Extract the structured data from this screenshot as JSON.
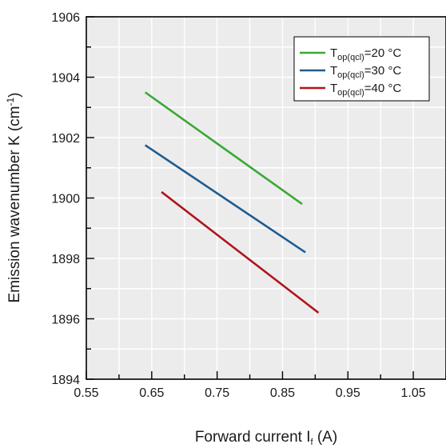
{
  "chart_data": {
    "type": "line",
    "xlabel": {
      "main": "Forward current I",
      "sub": "f",
      "unit": " (A)"
    },
    "ylabel": {
      "main": "Emission wavenumber K (cm",
      "sup": "-1",
      "end": ")"
    },
    "xlim": [
      0.55,
      1.1
    ],
    "ylim": [
      1894,
      1906
    ],
    "x_ticks": [
      "0.55",
      "0.65",
      "0.75",
      "0.85",
      "0.95",
      "1.05"
    ],
    "x_tick_values": [
      0.55,
      0.65,
      0.75,
      0.85,
      0.95,
      1.05
    ],
    "y_ticks": [
      "1894",
      "1896",
      "1898",
      "1900",
      "1902",
      "1904",
      "1906"
    ],
    "y_tick_values": [
      1894,
      1896,
      1898,
      1900,
      1902,
      1904,
      1906
    ],
    "grid": true,
    "legend_position": "top-right",
    "series": [
      {
        "name": {
          "pre": "T",
          "sub": "op(qcl)",
          "post": "=20 °C"
        },
        "color": "#3aa935",
        "x": [
          0.64,
          0.88
        ],
        "y": [
          1903.5,
          1899.8
        ]
      },
      {
        "name": {
          "pre": "T",
          "sub": "op(qcl)",
          "post": "=30 °C"
        },
        "color": "#1f5b8e",
        "x": [
          0.64,
          0.885
        ],
        "y": [
          1901.75,
          1898.2
        ]
      },
      {
        "name": {
          "pre": "T",
          "sub": "op(qcl)",
          "post": "=40 °C"
        },
        "color": "#b0141c",
        "x": [
          0.665,
          0.905
        ],
        "y": [
          1900.2,
          1896.2
        ]
      }
    ]
  }
}
